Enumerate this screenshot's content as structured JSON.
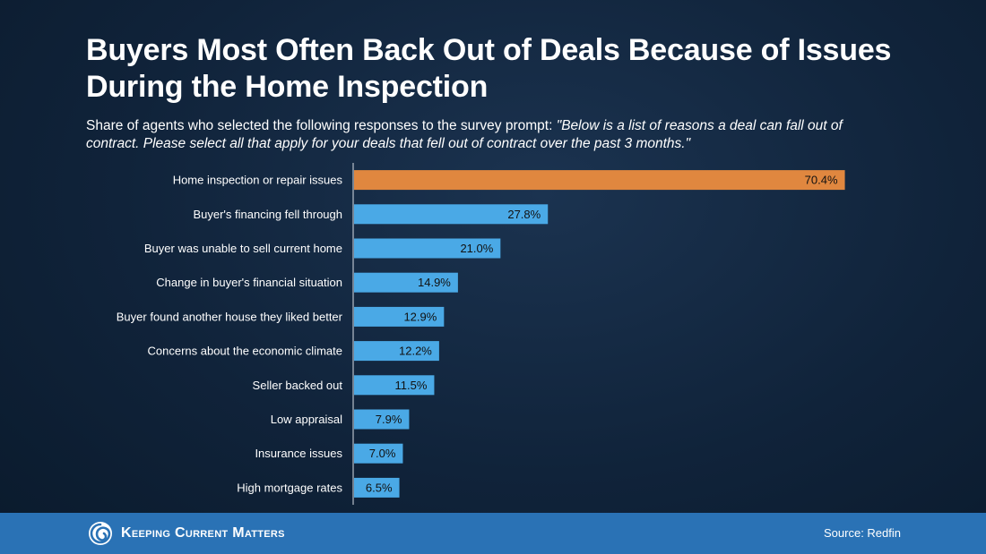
{
  "header": {
    "title": "Buyers Most Often Back Out of Deals Because of Issues During the Home Inspection",
    "subtitle_lead": "Share of agents who selected the following responses to the survey prompt: ",
    "subtitle_quote": "\"Below is a list of reasons a deal can fall out of contract. Please select all that apply for your deals that fell out of contract over the past 3 months.\""
  },
  "footer": {
    "brand": "Keeping Current Matters",
    "source": "Source: Redfin"
  },
  "colors": {
    "highlight": "#e0873f",
    "bar": "#4aa9e6",
    "axis": "#d8dee6"
  },
  "chart_data": {
    "type": "bar",
    "orientation": "horizontal",
    "categories": [
      "Home inspection or repair issues",
      "Buyer's financing fell through",
      "Buyer was unable to sell current home",
      "Change in buyer's financial situation",
      "Buyer found another house they liked better",
      "Concerns about the economic climate",
      "Seller backed out",
      "Low appraisal",
      "Insurance issues",
      "High mortgage rates"
    ],
    "values": [
      70.4,
      27.8,
      21.0,
      14.9,
      12.9,
      12.2,
      11.5,
      7.9,
      7.0,
      6.5
    ],
    "labels": [
      "70.4%",
      "27.8%",
      "21.0%",
      "14.9%",
      "12.9%",
      "12.2%",
      "11.5%",
      "7.9%",
      "7.0%",
      "6.5%"
    ],
    "highlight_index": 0,
    "xlim": [
      0,
      72
    ],
    "title": "Buyers Most Often Back Out of Deals Because of Issues During the Home Inspection"
  }
}
